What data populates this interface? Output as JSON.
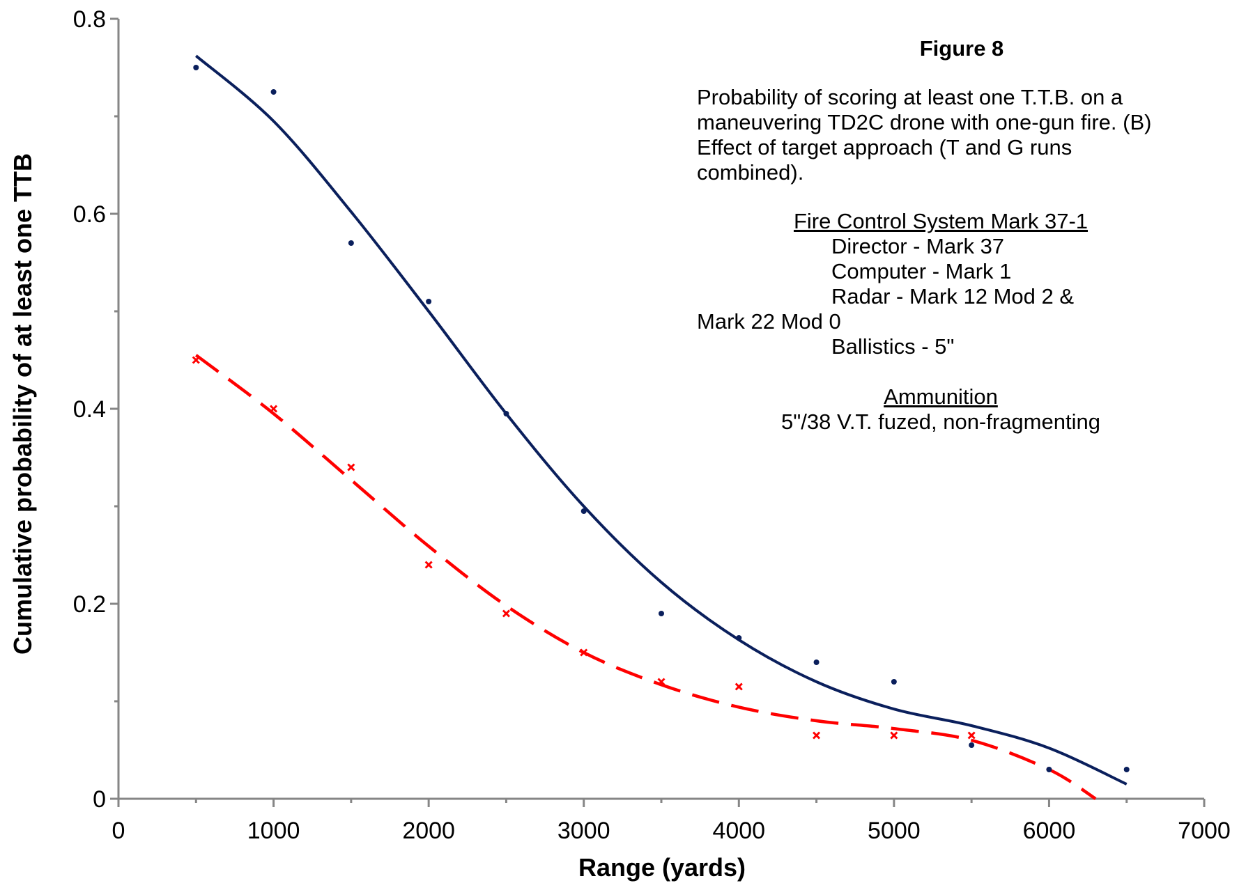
{
  "chart_data": {
    "type": "scatter",
    "xlabel": "Range (yards)",
    "ylabel": "Cumulative probability of at least one TTB",
    "xlim": [
      0,
      7000
    ],
    "ylim": [
      0,
      0.8
    ],
    "xticks": [
      "0",
      "1000",
      "2000",
      "3000",
      "4000",
      "5000",
      "6000",
      "7000"
    ],
    "yticks": [
      "0",
      "0.2",
      "0.4",
      "0.6",
      "0.8"
    ],
    "grid": false,
    "series": [
      {
        "color": "#0a1f5c",
        "marker": "dot",
        "trendline": "solid",
        "x": [
          500,
          1000,
          1500,
          2000,
          2500,
          3000,
          3500,
          4000,
          4500,
          5000,
          5500,
          6000,
          6500
        ],
        "y": [
          0.75,
          0.725,
          0.57,
          0.51,
          0.395,
          0.295,
          0.19,
          0.165,
          0.14,
          0.12,
          0.055,
          0.03,
          0.03
        ],
        "trend_x": [
          500,
          1000,
          1500,
          2000,
          2500,
          3000,
          3500,
          4000,
          4500,
          5000,
          5500,
          6000,
          6500
        ],
        "trend_y": [
          0.762,
          0.695,
          0.602,
          0.5,
          0.395,
          0.3,
          0.222,
          0.163,
          0.12,
          0.092,
          0.075,
          0.052,
          0.015
        ]
      },
      {
        "color": "#ff0000",
        "marker": "x",
        "trendline": "dashed",
        "x": [
          500,
          1000,
          1500,
          2000,
          2500,
          3000,
          3500,
          4000,
          4500,
          5000,
          5500
        ],
        "y": [
          0.45,
          0.4,
          0.34,
          0.24,
          0.19,
          0.15,
          0.12,
          0.115,
          0.065,
          0.065,
          0.065
        ],
        "trend_x": [
          500,
          1000,
          1500,
          2000,
          2500,
          3000,
          3500,
          4000,
          4500,
          5000,
          5500,
          6000,
          6300
        ],
        "trend_y": [
          0.455,
          0.395,
          0.327,
          0.259,
          0.198,
          0.15,
          0.117,
          0.094,
          0.08,
          0.072,
          0.06,
          0.03,
          0.0
        ]
      }
    ]
  },
  "annotation": {
    "title": "Figure 8",
    "description": "Probability of scoring at least one T.T.B. on a maneuvering TD2C drone with one-gun fire. (B) Effect of target approach (T and G runs combined).",
    "fire_control_heading": "Fire Control System Mark 37-1",
    "director": "Director - Mark 37",
    "computer": "Computer - Mark 1",
    "radar_line1": "Radar - Mark 12 Mod 2 &",
    "radar_line2": "Mark 22 Mod 0",
    "ballistics": "Ballistics - 5\"",
    "ammunition_heading": "Ammunition",
    "ammunition": "5\"/38 V.T. fuzed, non-fragmenting"
  }
}
